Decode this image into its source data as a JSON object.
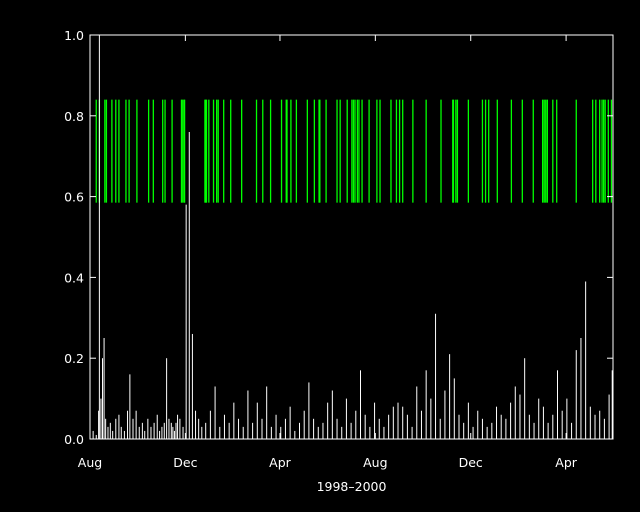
{
  "chart_data": {
    "type": "line",
    "xlabel": "1998–2000",
    "ylabel": "",
    "title": "",
    "x_tick_labels": [
      "Aug",
      "Dec",
      "Apr",
      "Aug",
      "Dec",
      "Apr"
    ],
    "x_tick_dates": [
      "1998-08-01",
      "1998-12-01",
      "1999-04-01",
      "1999-08-01",
      "1999-12-01",
      "2000-04-01"
    ],
    "x_range": [
      "1998-08-01",
      "2000-05-31"
    ],
    "ylim": [
      0.0,
      1.0
    ],
    "y_ticks": [
      0.0,
      0.2,
      0.4,
      0.6,
      0.8,
      1.0
    ],
    "y_tick_labels": [
      "0.0",
      "0.2",
      "0.4",
      "0.6",
      "0.8",
      "1.0"
    ],
    "grid": false,
    "colors": {
      "background": "#000000",
      "axes": "#ffffff",
      "series": "#ffffff",
      "events": "#00ff00"
    },
    "series": [
      {
        "baseline": 0.0,
        "x": [
          "1998-08-05",
          "1998-08-09",
          "1998-08-12",
          "1998-08-13",
          "1998-08-15",
          "1998-08-17",
          "1998-08-19",
          "1998-08-21",
          "1998-08-24",
          "1998-08-27",
          "1998-08-30",
          "1998-09-03",
          "1998-09-07",
          "1998-09-10",
          "1998-09-14",
          "1998-09-18",
          "1998-09-21",
          "1998-09-25",
          "1998-09-29",
          "1998-10-03",
          "1998-10-07",
          "1998-10-10",
          "1998-10-14",
          "1998-10-18",
          "1998-10-22",
          "1998-10-26",
          "1998-10-29",
          "1998-11-01",
          "1998-11-04",
          "1998-11-07",
          "1998-11-10",
          "1998-11-13",
          "1998-11-15",
          "1998-11-17",
          "1998-11-19",
          "1998-11-21",
          "1998-11-24",
          "1998-11-28",
          "1998-12-02",
          "1998-12-06",
          "1998-12-10",
          "1998-12-14",
          "1998-12-18",
          "1998-12-22",
          "1998-12-27",
          "1999-01-02",
          "1999-01-08",
          "1999-01-14",
          "1999-01-20",
          "1999-01-26",
          "1999-02-01",
          "1999-02-07",
          "1999-02-13",
          "1999-02-19",
          "1999-02-25",
          "1999-03-03",
          "1999-03-09",
          "1999-03-15",
          "1999-03-21",
          "1999-03-27",
          "1999-04-02",
          "1999-04-08",
          "1999-04-14",
          "1999-04-20",
          "1999-04-26",
          "1999-05-02",
          "1999-05-08",
          "1999-05-14",
          "1999-05-20",
          "1999-05-26",
          "1999-06-01",
          "1999-06-07",
          "1999-06-13",
          "1999-06-19",
          "1999-06-25",
          "1999-07-01",
          "1999-07-07",
          "1999-07-13",
          "1999-07-19",
          "1999-07-25",
          "1999-07-31",
          "1999-08-06",
          "1999-08-12",
          "1999-08-18",
          "1999-08-24",
          "1999-08-30",
          "1999-09-05",
          "1999-09-11",
          "1999-09-17",
          "1999-09-23",
          "1999-09-29",
          "1999-10-05",
          "1999-10-11",
          "1999-10-17",
          "1999-10-23",
          "1999-10-29",
          "1999-11-04",
          "1999-11-10",
          "1999-11-16",
          "1999-11-22",
          "1999-11-28",
          "1999-12-04",
          "1999-12-10",
          "1999-12-16",
          "1999-12-22",
          "1999-12-28",
          "2000-01-03",
          "2000-01-09",
          "2000-01-15",
          "2000-01-21",
          "2000-01-27",
          "2000-02-02",
          "2000-02-08",
          "2000-02-14",
          "2000-02-20",
          "2000-02-26",
          "2000-03-03",
          "2000-03-09",
          "2000-03-15",
          "2000-03-21",
          "2000-03-27",
          "2000-04-02",
          "2000-04-08",
          "2000-04-14",
          "2000-04-20",
          "2000-04-26",
          "2000-05-02",
          "2000-05-08",
          "2000-05-14",
          "2000-05-20",
          "2000-05-26",
          "2000-05-30"
        ],
        "values": [
          0.02,
          0.01,
          0.07,
          1.0,
          0.1,
          0.2,
          0.25,
          0.05,
          0.03,
          0.04,
          0.02,
          0.05,
          0.06,
          0.03,
          0.02,
          0.07,
          0.16,
          0.05,
          0.07,
          0.03,
          0.04,
          0.02,
          0.05,
          0.03,
          0.04,
          0.06,
          0.02,
          0.03,
          0.04,
          0.2,
          0.05,
          0.04,
          0.03,
          0.02,
          0.04,
          0.06,
          0.05,
          0.03,
          0.58,
          0.76,
          0.26,
          0.07,
          0.05,
          0.03,
          0.04,
          0.07,
          0.13,
          0.03,
          0.06,
          0.04,
          0.09,
          0.05,
          0.03,
          0.12,
          0.04,
          0.09,
          0.05,
          0.13,
          0.03,
          0.06,
          0.03,
          0.05,
          0.08,
          0.02,
          0.04,
          0.07,
          0.14,
          0.05,
          0.03,
          0.04,
          0.09,
          0.12,
          0.05,
          0.03,
          0.1,
          0.04,
          0.07,
          0.17,
          0.06,
          0.03,
          0.09,
          0.05,
          0.03,
          0.06,
          0.08,
          0.09,
          0.08,
          0.06,
          0.03,
          0.13,
          0.07,
          0.17,
          0.1,
          0.31,
          0.05,
          0.12,
          0.21,
          0.15,
          0.06,
          0.04,
          0.09,
          0.03,
          0.07,
          0.05,
          0.03,
          0.04,
          0.08,
          0.06,
          0.05,
          0.09,
          0.13,
          0.11,
          0.2,
          0.06,
          0.04,
          0.1,
          0.08,
          0.04,
          0.06,
          0.17,
          0.07,
          0.1,
          0.04,
          0.22,
          0.25,
          0.39,
          0.08,
          0.06,
          0.07,
          0.05,
          0.11,
          0.17
        ]
      }
    ],
    "event_markers": {
      "y_range": [
        0.585,
        0.84
      ],
      "x": [
        "1998-08-09",
        "1998-08-13",
        "1998-08-20",
        "1998-08-22",
        "1998-08-29",
        "1998-09-03",
        "1998-09-07",
        "1998-09-16",
        "1998-09-20",
        "1998-09-30",
        "1998-10-15",
        "1998-10-21",
        "1998-11-02",
        "1998-11-05",
        "1998-11-14",
        "1998-11-26",
        "1998-11-27",
        "1998-11-29",
        "1998-11-30",
        "1998-12-26",
        "1998-12-27",
        "1998-12-28",
        "1998-12-31",
        "1999-01-06",
        "1999-01-10",
        "1999-01-12",
        "1999-01-19",
        "1999-01-28",
        "1999-02-11",
        "1999-03-02",
        "1999-03-10",
        "1999-03-20",
        "1999-04-03",
        "1999-04-09",
        "1999-04-10",
        "1999-04-15",
        "1999-04-22",
        "1999-05-06",
        "1999-05-15",
        "1999-05-21",
        "1999-05-22",
        "1999-05-30",
        "1999-06-13",
        "1999-06-17",
        "1999-06-26",
        "1999-07-02",
        "1999-07-04",
        "1999-07-06",
        "1999-07-09",
        "1999-07-11",
        "1999-07-15",
        "1999-07-24",
        "1999-08-03",
        "1999-08-07",
        "1999-08-21",
        "1999-08-28",
        "1999-09-01",
        "1999-09-05",
        "1999-09-18",
        "1999-10-05",
        "1999-10-24",
        "1999-11-08",
        "1999-11-09",
        "1999-11-12",
        "1999-11-14",
        "1999-11-28",
        "1999-12-16",
        "1999-12-20",
        "1999-12-24",
        "2000-01-04",
        "2000-01-22",
        "2000-02-05",
        "2000-02-19",
        "2000-03-02",
        "2000-03-04",
        "2000-03-06",
        "2000-03-08",
        "2000-03-15",
        "2000-03-20",
        "2000-04-14",
        "2000-05-05",
        "2000-05-09",
        "2000-05-14",
        "2000-05-17",
        "2000-05-19",
        "2000-05-21",
        "2000-05-25",
        "2000-05-29"
      ]
    }
  }
}
